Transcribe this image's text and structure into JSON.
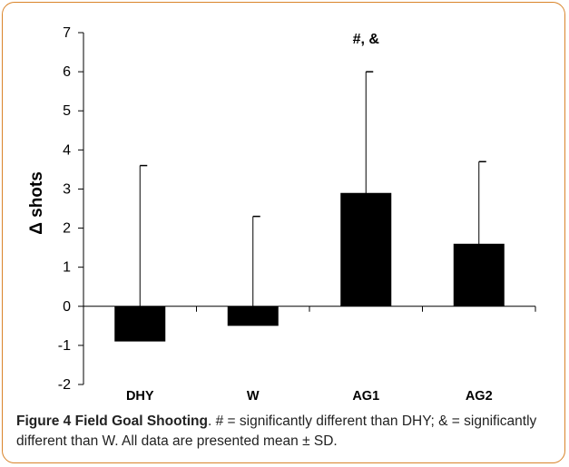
{
  "chart_data": {
    "type": "bar",
    "categories": [
      "DHY",
      "W",
      "AG1",
      "AG2"
    ],
    "values": [
      -0.9,
      -0.5,
      2.9,
      1.6
    ],
    "error_upper": [
      3.6,
      2.3,
      6.0,
      3.7
    ],
    "ylabel": "Δ shots",
    "xlabel": "",
    "ylim": [
      -2,
      7
    ],
    "yticks": [
      7,
      6,
      5,
      4,
      3,
      2,
      1,
      0,
      -1,
      -2
    ],
    "annotation": {
      "text": "#, &",
      "category": "AG1"
    },
    "bar_color": "#000000",
    "grid": false
  },
  "caption": {
    "title": "Figure 4 Field Goal Shooting",
    "text": ". # = significantly different than DHY; & = significantly different than W. All data are presented mean ± SD."
  },
  "colors": {
    "frame": "#d9842a",
    "text": "#222222"
  }
}
